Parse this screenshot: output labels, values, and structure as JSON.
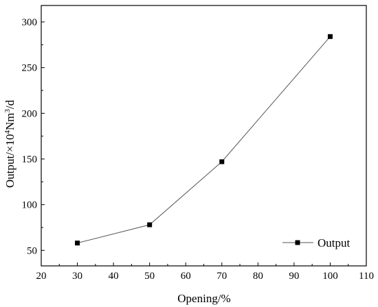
{
  "chart_data": {
    "type": "line",
    "title": "",
    "xlabel": "Opening/%",
    "ylabel_parts": {
      "prefix": "Output/×10",
      "exp1": "4",
      "mid": "Nm",
      "exp2": "3",
      "suffix": "/d"
    },
    "xlim": [
      20,
      110
    ],
    "ylim": [
      33,
      318
    ],
    "x_ticks": [
      20,
      30,
      40,
      50,
      60,
      70,
      80,
      90,
      100,
      110
    ],
    "y_ticks": [
      50,
      100,
      150,
      200,
      250,
      300
    ],
    "grid": false,
    "legend_position": "bottom-right",
    "series": [
      {
        "name": "Output",
        "marker": "square",
        "color": "#000000",
        "line_color": "#555555",
        "x": [
          30,
          50,
          70,
          100
        ],
        "y": [
          58,
          78,
          147,
          284
        ]
      }
    ]
  }
}
